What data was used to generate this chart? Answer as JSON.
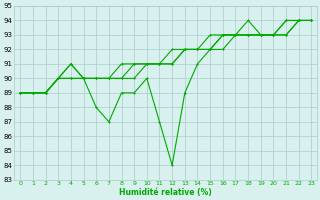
{
  "xlabel": "Humidité relative (%)",
  "xlim_min": -0.5,
  "xlim_max": 23.4,
  "ylim_min": 83,
  "ylim_max": 95,
  "yticks": [
    83,
    84,
    85,
    86,
    87,
    88,
    89,
    90,
    91,
    92,
    93,
    94,
    95
  ],
  "xticks": [
    0,
    1,
    2,
    3,
    4,
    5,
    6,
    7,
    8,
    9,
    10,
    11,
    12,
    13,
    14,
    15,
    16,
    17,
    18,
    19,
    20,
    21,
    22,
    23
  ],
  "background_color": "#d8f0ee",
  "grid_color": "#aacccc",
  "line_color": "#00aa00",
  "line1_y": [
    89,
    89,
    89,
    90,
    91,
    90,
    88,
    87,
    89,
    89,
    90,
    87,
    84,
    89,
    91,
    92,
    93,
    93,
    94,
    93,
    93,
    94,
    94,
    94
  ],
  "line2_y": [
    89,
    89,
    89,
    90,
    91,
    90,
    90,
    90,
    90,
    90,
    91,
    91,
    92,
    92,
    92,
    93,
    93,
    93,
    93,
    93,
    93,
    94,
    94,
    94
  ],
  "line3_y": [
    89,
    89,
    89,
    90,
    90,
    90,
    90,
    90,
    91,
    91,
    91,
    91,
    91,
    92,
    92,
    92,
    93,
    93,
    93,
    93,
    93,
    93,
    94,
    94
  ],
  "line4_y": [
    89,
    89,
    89,
    90,
    90,
    90,
    90,
    90,
    90,
    91,
    91,
    91,
    91,
    92,
    92,
    92,
    92,
    93,
    93,
    93,
    93,
    93,
    94,
    94
  ]
}
